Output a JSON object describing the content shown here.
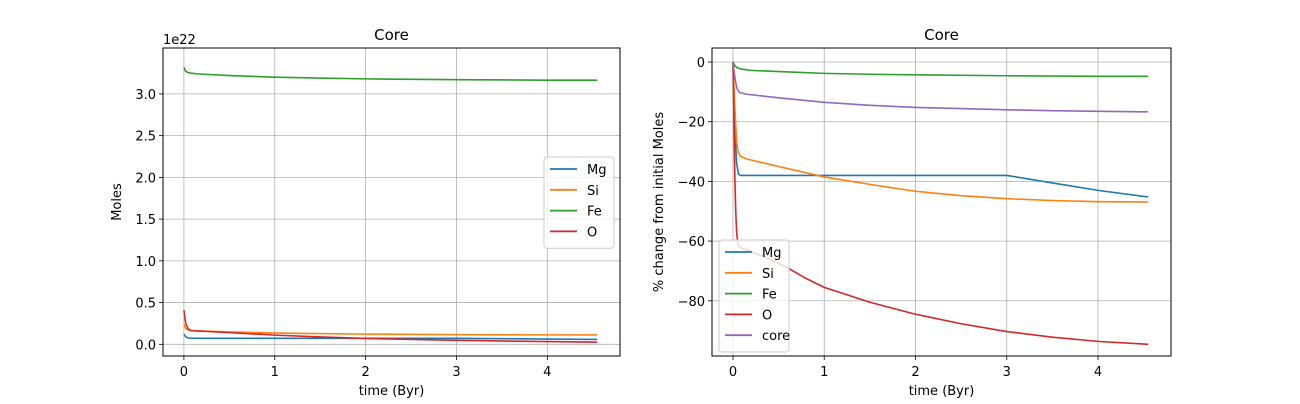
{
  "colors": {
    "Mg": "#1f77b4",
    "Si": "#ff7f0e",
    "Fe": "#2ca02c",
    "O": "#d62728",
    "core": "#9467bd"
  },
  "chart_data": [
    {
      "type": "line",
      "title": "Core",
      "xlabel": "time (Byr)",
      "ylabel": "Moles",
      "offset_label": "1e22",
      "xlim": [
        -0.23,
        4.8
      ],
      "ylim": [
        -0.14,
        3.55
      ],
      "xticks": [
        0,
        1,
        2,
        3,
        4
      ],
      "xtick_labels": [
        "0",
        "1",
        "2",
        "3",
        "4"
      ],
      "yticks": [
        0,
        0.5,
        1.0,
        1.5,
        2.0,
        2.5,
        3.0
      ],
      "ytick_labels": [
        "0.0",
        "0.5",
        "1.0",
        "1.5",
        "2.0",
        "2.5",
        "3.0"
      ],
      "grid": true,
      "legend": {
        "position": "center-right",
        "entries": [
          "Mg",
          "Si",
          "Fe",
          "O"
        ]
      },
      "series": [
        {
          "name": "Mg",
          "x": [
            0,
            0.02,
            0.05,
            0.08,
            0.15,
            0.5,
            1,
            2,
            3,
            3.5,
            4,
            4.55
          ],
          "y": [
            0.12,
            0.09,
            0.075,
            0.073,
            0.072,
            0.072,
            0.072,
            0.072,
            0.072,
            0.068,
            0.063,
            0.058
          ]
        },
        {
          "name": "Si",
          "x": [
            0,
            0.02,
            0.05,
            0.08,
            0.15,
            0.5,
            1,
            2,
            3,
            4,
            4.55
          ],
          "y": [
            0.24,
            0.19,
            0.17,
            0.165,
            0.16,
            0.148,
            0.135,
            0.122,
            0.116,
            0.113,
            0.112
          ]
        },
        {
          "name": "Fe",
          "x": [
            0,
            0.02,
            0.05,
            0.08,
            0.15,
            0.5,
            1,
            1.5,
            2,
            3,
            4,
            4.55
          ],
          "y": [
            3.32,
            3.27,
            3.255,
            3.248,
            3.24,
            3.22,
            3.2,
            3.19,
            3.18,
            3.17,
            3.165,
            3.165
          ]
        },
        {
          "name": "O",
          "x": [
            0,
            0.02,
            0.05,
            0.08,
            0.15,
            0.5,
            1,
            1.5,
            2,
            3,
            4,
            4.55
          ],
          "y": [
            0.41,
            0.25,
            0.18,
            0.165,
            0.16,
            0.14,
            0.11,
            0.088,
            0.07,
            0.048,
            0.033,
            0.026
          ]
        }
      ]
    },
    {
      "type": "line",
      "title": "Core",
      "xlabel": "time (Byr)",
      "ylabel": "% change from initial Moles",
      "xlim": [
        -0.23,
        4.8
      ],
      "ylim": [
        -98.5,
        4.7
      ],
      "xticks": [
        0,
        1,
        2,
        3,
        4
      ],
      "xtick_labels": [
        "0",
        "1",
        "2",
        "3",
        "4"
      ],
      "yticks": [
        0,
        -20,
        -40,
        -60,
        -80
      ],
      "ytick_labels": [
        "0",
        "−20",
        "−40",
        "−60",
        "−80"
      ],
      "grid": true,
      "legend": {
        "position": "lower-left",
        "entries": [
          "Mg",
          "Si",
          "Fe",
          "O",
          "core"
        ]
      },
      "series": [
        {
          "name": "Mg",
          "x": [
            0,
            0.02,
            0.04,
            0.06,
            0.08,
            0.15,
            1,
            2,
            3,
            3.5,
            4,
            4.55
          ],
          "y": [
            0,
            -22,
            -34,
            -37.5,
            -38,
            -38,
            -38,
            -38,
            -38,
            -40.5,
            -43,
            -45.2
          ]
        },
        {
          "name": "Si",
          "x": [
            0,
            0.02,
            0.04,
            0.06,
            0.08,
            0.15,
            0.5,
            1,
            1.5,
            2,
            2.5,
            3,
            3.5,
            4,
            4.55
          ],
          "y": [
            0,
            -15,
            -27,
            -30.5,
            -31.5,
            -32.5,
            -35,
            -38.5,
            -41,
            -43.3,
            -44.8,
            -45.8,
            -46.4,
            -46.8,
            -46.9
          ]
        },
        {
          "name": "Fe",
          "x": [
            0,
            0.02,
            0.05,
            0.1,
            0.2,
            0.5,
            1,
            1.5,
            2,
            3,
            4,
            4.55
          ],
          "y": [
            0,
            -1.2,
            -2.0,
            -2.4,
            -2.8,
            -3.2,
            -3.8,
            -4.1,
            -4.3,
            -4.6,
            -4.8,
            -4.8
          ]
        },
        {
          "name": "O",
          "x": [
            0,
            0.01,
            0.02,
            0.03,
            0.04,
            0.05,
            0.06,
            0.08,
            0.1,
            0.2,
            0.4,
            0.6,
            0.8,
            1,
            1.5,
            2,
            2.5,
            3,
            3.5,
            4,
            4.55
          ],
          "y": [
            0,
            -20,
            -38,
            -50,
            -57,
            -60,
            -61.5,
            -62,
            -62.5,
            -63.5,
            -66,
            -69,
            -72.5,
            -75.5,
            -80.5,
            -84.5,
            -87.7,
            -90.3,
            -92.2,
            -93.6,
            -94.6
          ]
        },
        {
          "name": "core",
          "x": [
            0,
            0.02,
            0.04,
            0.06,
            0.08,
            0.15,
            0.5,
            1,
            1.5,
            2,
            2.5,
            3,
            3.5,
            4,
            4.55
          ],
          "y": [
            0,
            -5,
            -8.5,
            -9.8,
            -10.3,
            -10.8,
            -12,
            -13.5,
            -14.5,
            -15.2,
            -15.6,
            -16,
            -16.3,
            -16.5,
            -16.7
          ]
        }
      ]
    }
  ]
}
